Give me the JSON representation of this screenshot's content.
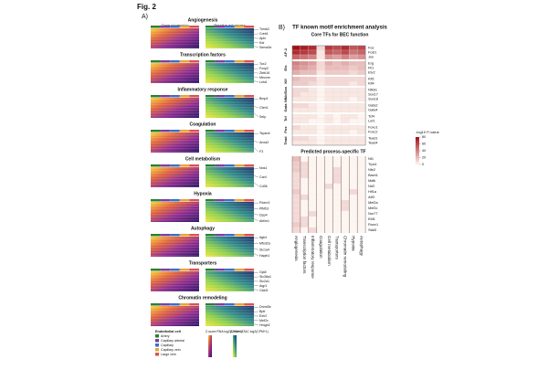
{
  "figure_label": "Fig. 2",
  "panel_a": {
    "label": "A)",
    "gene_expression": "Gene expression",
    "putative_enhancers": "Putative enhancers",
    "sections": [
      {
        "title": "Angiogenesis",
        "genes": [
          "Tmsb2",
          "Creb1",
          "Apln",
          "Kdr",
          "Sema3e"
        ]
      },
      {
        "title": "Transcription factors",
        "genes": [
          "Tox2",
          "Foxp2",
          "Zbtb16",
          "Mecom",
          "Lrrk6"
        ]
      },
      {
        "title": "Inflammatory response",
        "genes": [
          "Bmp4",
          "Cfeh1",
          "Selp"
        ]
      },
      {
        "title": "Coagulation",
        "genes": [
          "Tspan4",
          "Anxa2",
          "F3"
        ]
      },
      {
        "title": "Cell metabolism",
        "genes": [
          "Nos1",
          "Car4",
          "Cd36"
        ]
      },
      {
        "title": "Hypoxia",
        "genes": [
          "Pdzrn3",
          "Pfkfb3",
          "Dpp4",
          "Ablim1"
        ]
      },
      {
        "title": "Autophagy",
        "genes": [
          "Itgb4",
          "Mfsd2a",
          "Slc1a4",
          "Hapln1"
        ]
      },
      {
        "title": "Transporters",
        "genes": [
          "Gja5",
          "Slc38a1",
          "Slc2a1",
          "Aqp1",
          "Cldn5"
        ]
      },
      {
        "title": "Chromatin remodeling",
        "genes": [
          "Dnmt3b",
          "Bptf",
          "Ezh2",
          "Mef2c",
          "Hmgb2"
        ]
      }
    ],
    "legend": {
      "title": "Endothelial cell",
      "items": [
        {
          "name": "Artery",
          "color": "#2e7d32"
        },
        {
          "name": "Capillary arterial",
          "color": "#7b3fa0"
        },
        {
          "name": "Capillary",
          "color": "#3a6fc4"
        },
        {
          "name": "Capillary vein",
          "color": "#e8a33c"
        },
        {
          "name": "Large vein",
          "color": "#d9534f"
        }
      ]
    },
    "rna_scale": "Z-score RNA log2(CPM+1)",
    "atac_scale": "Z-score ATAC log2(CPM+1)"
  },
  "panel_b": {
    "label": "B)",
    "title": "TF known motif enrichment analysis",
    "core_title": "Core TFs for BEC function",
    "processes": [
      "Angiogenesis",
      "Transcription factors",
      "Inflammatory response",
      "Coagulation",
      "Cell metabolism",
      "Transporters",
      "Chromatin remodeling",
      "Hypoxia",
      "Autophagy"
    ],
    "groups": [
      {
        "name": "AP-1",
        "rows": [
          {
            "tf": "Fos",
            "values": [
              80,
              75,
              70,
              10,
              65,
              60,
              70,
              55,
              60
            ]
          },
          {
            "tf": "Fosl1",
            "values": [
              70,
              65,
              60,
              5,
              55,
              50,
              60,
              45,
              50
            ]
          },
          {
            "tf": "Jun",
            "values": [
              50,
              45,
              40,
              5,
              35,
              30,
              40,
              30,
              35
            ]
          }
        ]
      },
      {
        "name": "Ets",
        "rows": [
          {
            "tf": "Erg",
            "values": [
              40,
              35,
              30,
              10,
              25,
              20,
              25,
              20,
              20
            ]
          },
          {
            "tf": "Fli1",
            "values": [
              35,
              30,
              25,
              10,
              20,
              20,
              20,
              15,
              20
            ]
          },
          {
            "tf": "Etv2",
            "values": [
              25,
              20,
              20,
              5,
              15,
              15,
              15,
              10,
              15
            ]
          }
        ]
      },
      {
        "name": "Klf",
        "rows": [
          {
            "tf": "Klf2",
            "values": [
              20,
              15,
              15,
              5,
              10,
              10,
              10,
              10,
              10
            ]
          },
          {
            "tf": "Klf4",
            "values": [
              15,
              15,
              10,
              5,
              10,
              10,
              10,
              5,
              10
            ]
          }
        ]
      },
      {
        "name": "Nfkb/Sox",
        "rows": [
          {
            "tf": "Nfkb1",
            "values": [
              10,
              10,
              5,
              0,
              5,
              5,
              5,
              5,
              5
            ]
          },
          {
            "tf": "Sox17",
            "values": [
              10,
              5,
              5,
              0,
              5,
              5,
              5,
              5,
              5
            ]
          },
          {
            "tf": "Sox18",
            "values": [
              5,
              5,
              5,
              0,
              5,
              5,
              5,
              0,
              5
            ]
          }
        ]
      },
      {
        "name": "Gata",
        "rows": [
          {
            "tf": "Gata2",
            "values": [
              10,
              10,
              5,
              0,
              5,
              5,
              5,
              5,
              5
            ]
          },
          {
            "tf": "Gata4",
            "values": [
              5,
              5,
              5,
              0,
              5,
              5,
              5,
              5,
              5
            ]
          }
        ]
      },
      {
        "name": "Tcf",
        "rows": [
          {
            "tf": "Tcf4",
            "values": [
              5,
              5,
              5,
              0,
              5,
              0,
              5,
              5,
              0
            ]
          },
          {
            "tf": "Lef1",
            "values": [
              5,
              5,
              0,
              0,
              5,
              0,
              5,
              0,
              0
            ]
          }
        ]
      },
      {
        "name": "Fox",
        "rows": [
          {
            "tf": "Foxo1",
            "values": [
              10,
              5,
              5,
              0,
              5,
              5,
              5,
              5,
              5
            ]
          },
          {
            "tf": "Foxc2",
            "values": [
              5,
              5,
              5,
              0,
              5,
              5,
              5,
              0,
              5
            ]
          }
        ]
      },
      {
        "name": "Tead",
        "rows": [
          {
            "tf": "Tead1",
            "values": [
              10,
              10,
              5,
              0,
              5,
              5,
              5,
              5,
              5
            ]
          },
          {
            "tf": "Tead4",
            "values": [
              5,
              5,
              5,
              0,
              5,
              5,
              5,
              5,
              5
            ]
          }
        ]
      }
    ],
    "predicted_title": "Predicted process-specific TF",
    "predicted_rows": [
      {
        "tf": "Nf1",
        "values": [
          20,
          0,
          0,
          0,
          0,
          0,
          0,
          0,
          0
        ]
      },
      {
        "tf": "Trps1",
        "values": [
          15,
          10,
          0,
          0,
          0,
          0,
          0,
          0,
          0
        ]
      },
      {
        "tf": "Nfe2",
        "values": [
          15,
          10,
          0,
          0,
          0,
          10,
          0,
          0,
          0
        ]
      },
      {
        "tf": "Bach1",
        "values": [
          10,
          10,
          0,
          0,
          0,
          10,
          0,
          0,
          0
        ]
      },
      {
        "tf": "Mafk",
        "values": [
          10,
          0,
          0,
          0,
          0,
          10,
          0,
          0,
          0
        ]
      },
      {
        "tf": "Nrf2",
        "values": [
          10,
          0,
          0,
          0,
          10,
          0,
          0,
          0,
          0
        ]
      },
      {
        "tf": "Hif1a",
        "values": [
          15,
          0,
          0,
          0,
          0,
          0,
          0,
          10,
          0
        ]
      },
      {
        "tf": "Atf3",
        "values": [
          10,
          10,
          0,
          0,
          0,
          0,
          0,
          0,
          0
        ]
      },
      {
        "tf": "Mef2a",
        "values": [
          10,
          0,
          0,
          0,
          0,
          0,
          10,
          0,
          0
        ]
      },
      {
        "tf": "Mef2c",
        "values": [
          10,
          0,
          0,
          0,
          0,
          0,
          10,
          0,
          0
        ]
      },
      {
        "tf": "Nur77",
        "values": [
          10,
          0,
          10,
          0,
          0,
          0,
          0,
          0,
          0
        ]
      },
      {
        "tf": "Ebf1",
        "values": [
          10,
          10,
          0,
          0,
          0,
          0,
          0,
          0,
          0
        ]
      },
      {
        "tf": "Runx1",
        "values": [
          15,
          10,
          0,
          0,
          0,
          0,
          0,
          0,
          0
        ]
      },
      {
        "tf": "Stat3",
        "values": [
          10,
          0,
          10,
          0,
          0,
          0,
          0,
          0,
          0
        ]
      }
    ],
    "colorbar": {
      "title": "-log10 P-value",
      "lim": [
        0,
        80
      ],
      "ticks": [
        80,
        60,
        40,
        20,
        0
      ]
    }
  }
}
